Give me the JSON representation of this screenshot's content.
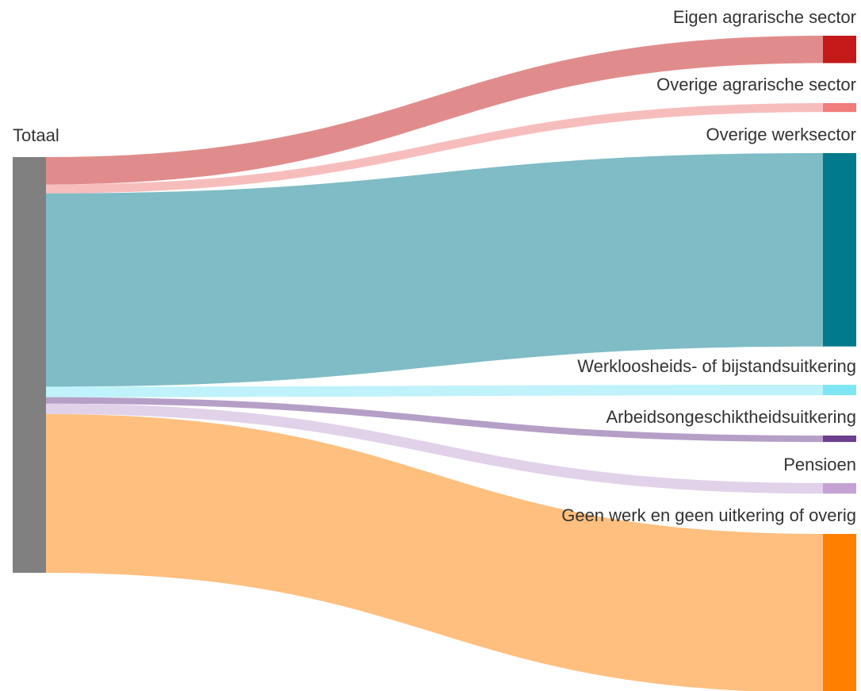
{
  "chart_data": {
    "type": "sankey",
    "nodes": [
      {
        "name": "Totaal",
        "color": "#808080"
      },
      {
        "name": "Eigen agrarische sector",
        "color": "#c41a1a"
      },
      {
        "name": "Overige agrarische sector",
        "color": "#f07c7c"
      },
      {
        "name": "Overige werksector",
        "color": "#007a8c"
      },
      {
        "name": "Werkloosheids- of bijstandsuitkering",
        "color": "#7fe6f5"
      },
      {
        "name": "Arbeidsongeschiktheidsuitkering",
        "color": "#6b3f8f"
      },
      {
        "name": "Pensioen",
        "color": "#c4a3d4"
      },
      {
        "name": "Geen werk en geen uitkering of overig",
        "color": "#ff7f00"
      }
    ],
    "links": [
      {
        "source": 0,
        "target": 1,
        "value": 34
      },
      {
        "source": 0,
        "target": 2,
        "value": 11
      },
      {
        "source": 0,
        "target": 3,
        "value": 240
      },
      {
        "source": 0,
        "target": 4,
        "value": 13
      },
      {
        "source": 0,
        "target": 5,
        "value": 8
      },
      {
        "source": 0,
        "target": 6,
        "value": 13
      },
      {
        "source": 0,
        "target": 7,
        "value": 197
      }
    ]
  }
}
